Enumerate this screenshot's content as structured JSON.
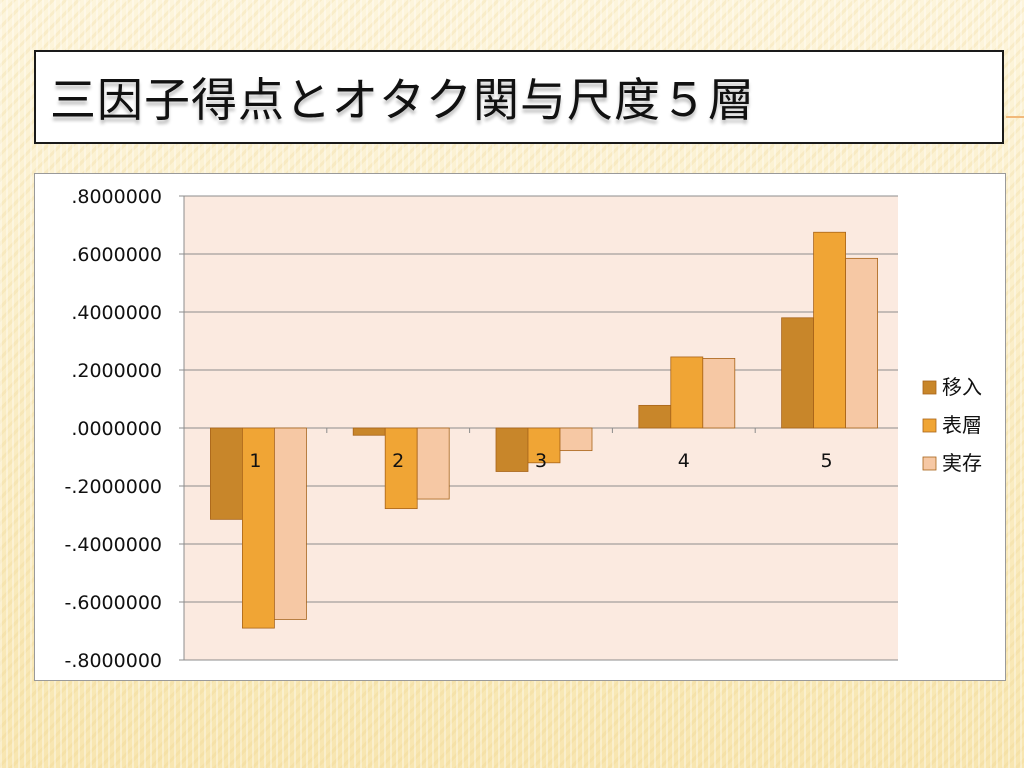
{
  "slide": {
    "title": "三因子得点とオタク関与尺度５層"
  },
  "chart_data": {
    "type": "bar",
    "categories": [
      "1",
      "2",
      "3",
      "4",
      "5"
    ],
    "series": [
      {
        "name": "移入",
        "color": "#c8862a",
        "values": [
          -0.315,
          -0.025,
          -0.15,
          0.078,
          0.38
        ]
      },
      {
        "name": "表層",
        "color": "#f0a535",
        "values": [
          -0.69,
          -0.278,
          -0.12,
          0.245,
          0.675
        ]
      },
      {
        "name": "実存",
        "color": "#f6c8a4",
        "values": [
          -0.66,
          -0.245,
          -0.078,
          0.24,
          0.585
        ]
      }
    ],
    "yticks": [
      ".8000000",
      ".6000000",
      ".4000000",
      ".2000000",
      ".0000000",
      "-.2000000",
      "-.4000000",
      "-.6000000",
      "-.8000000"
    ],
    "ylim": [
      -0.8,
      0.8
    ],
    "grid": true,
    "legend_position": "right",
    "plot_background": "#fbeae0"
  }
}
